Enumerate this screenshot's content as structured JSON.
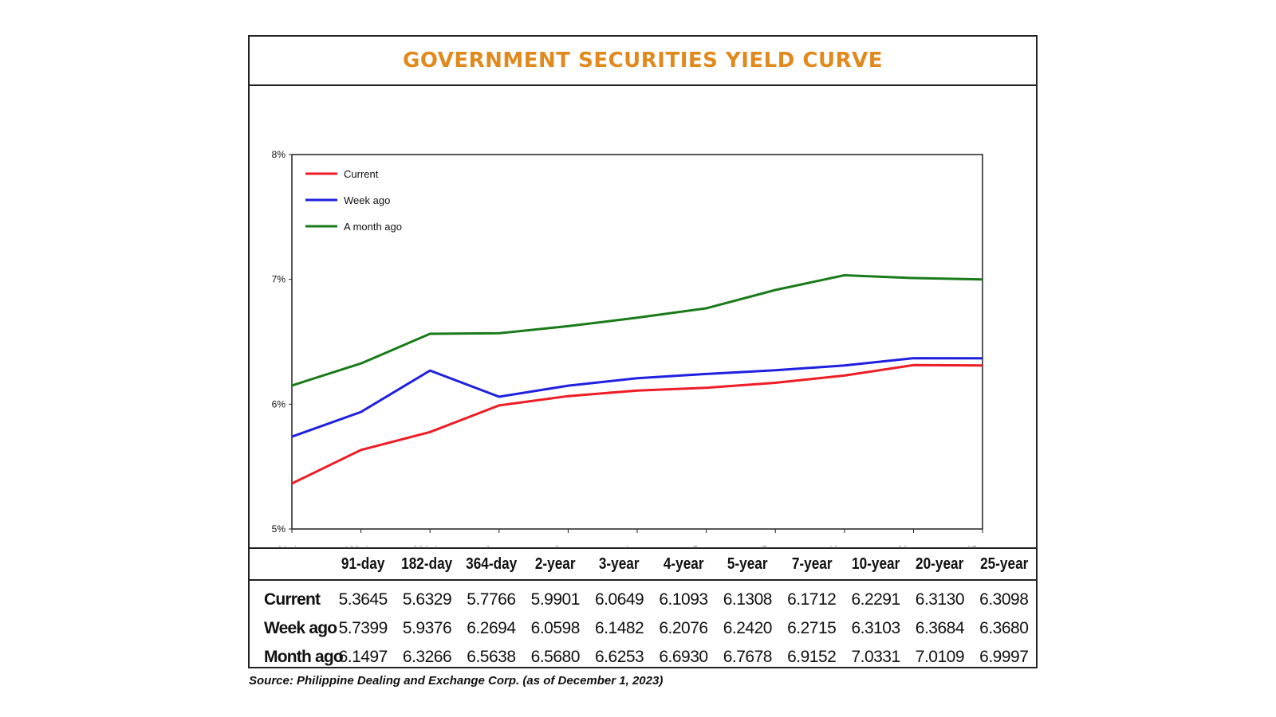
{
  "title": "GOVERNMENT SECURITIES YIELD CURVE",
  "source": "Source: Philippine Dealing and Exchange Corp. (as of December 1, 2023)",
  "chart_data": {
    "type": "line",
    "title": "GOVERNMENT SECURITIES YIELD CURVE",
    "categories": [
      "91-day",
      "182-day",
      "364-day",
      "2-year",
      "3-year",
      "4-year",
      "5-year",
      "7-year",
      "10-year",
      "20-year",
      "25-year"
    ],
    "ylim": [
      5,
      8
    ],
    "yticks": [
      5,
      6,
      7,
      8
    ],
    "ytick_labels": [
      "5%",
      "6%",
      "7%",
      "8%"
    ],
    "legend_position": "top-left",
    "series": [
      {
        "name": "Current",
        "color": "#ee1c25",
        "values": [
          5.3645,
          5.6329,
          5.7766,
          5.9901,
          6.0649,
          6.1093,
          6.1308,
          6.1712,
          6.2291,
          6.313,
          6.3098
        ]
      },
      {
        "name": "Week ago",
        "color": "#1f1fe0",
        "values": [
          5.7399,
          5.9376,
          6.2694,
          6.0598,
          6.1482,
          6.2076,
          6.242,
          6.2715,
          6.3103,
          6.3684,
          6.368
        ]
      },
      {
        "name": "A month ago",
        "color": "#1a7a1a",
        "values": [
          6.1497,
          6.3266,
          6.5638,
          6.568,
          6.6253,
          6.693,
          6.7678,
          6.9152,
          7.0331,
          7.0109,
          6.9997
        ]
      }
    ]
  },
  "table": {
    "headers": [
      "",
      "91-day",
      "182-day",
      "364-day",
      "2-year",
      "3-year",
      "4-year",
      "5-year",
      "7-year",
      "10-year",
      "20-year",
      "25-year"
    ],
    "rows": [
      [
        "Current",
        "5.3645",
        "5.6329",
        "5.7766",
        "5.9901",
        "6.0649",
        "6.1093",
        "6.1308",
        "6.1712",
        "6.2291",
        "6.3130",
        "6.3098"
      ],
      [
        "Week ago",
        "5.7399",
        "5.9376",
        "6.2694",
        "6.0598",
        "6.1482",
        "6.2076",
        "6.2420",
        "6.2715",
        "6.3103",
        "6.3684",
        "6.3680"
      ],
      [
        "Month ago",
        "6.1497",
        "6.3266",
        "6.5638",
        "6.5680",
        "6.6253",
        "6.6930",
        "6.7678",
        "6.9152",
        "7.0331",
        "7.0109",
        "6.9997"
      ]
    ]
  }
}
